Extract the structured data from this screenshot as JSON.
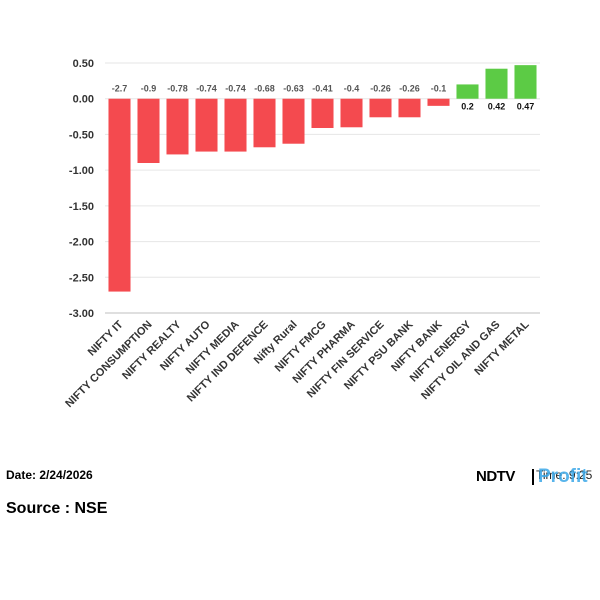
{
  "chart_data": {
    "type": "bar",
    "categories": [
      "NIFTY IT",
      "NIFTY CONSUMPTION",
      "NIFTY REALTY",
      "NIFTY AUTO",
      "NIFTY MEDIA",
      "NIFTY IND DEFENCE",
      "Nifty Rural",
      "NIFTY FMCG",
      "NIFTY PHARMA",
      "NIFTY FIN SERVICE",
      "NIFTY PSU BANK",
      "NIFTY BANK",
      "NIFTY ENERGY",
      "NIFTY OIL AND GAS",
      "NIFTY METAL"
    ],
    "values": [
      -2.7,
      -0.9,
      -0.78,
      -0.74,
      -0.74,
      -0.68,
      -0.63,
      -0.41,
      -0.4,
      -0.26,
      -0.26,
      -0.1,
      0.2,
      0.42,
      0.47
    ],
    "data_labels": [
      "-2.7",
      "-0.9",
      "-0.78",
      "-0.74",
      "-0.74",
      "-0.68",
      "-0.63",
      "-0.41",
      "-0.4",
      "-0.26",
      "-0.26",
      "-0.1",
      "0.2",
      "0.42",
      "0.47"
    ],
    "yticks": [
      0.5,
      0,
      -0.5,
      -1,
      -1.5,
      -2,
      -2.5,
      -3
    ],
    "ytick_labels": [
      "0.50",
      "0.00",
      "-0.50",
      "-1.00",
      "-1.50",
      "-2.00",
      "-2.50",
      "-3.00"
    ],
    "ylim": [
      -3,
      0.5
    ],
    "grid": true,
    "colors": {
      "negative": "#f44a4f",
      "positive": "#5ccb45",
      "grid": "#e6e6e6",
      "axis": "#bfbfbf"
    }
  },
  "footer": {
    "date": "Date: 2/24/2026",
    "source": "Source : NSE",
    "brand_ndtv": "NDTV",
    "brand_time": "Time: 9:25",
    "brand_profit": "Profit"
  }
}
